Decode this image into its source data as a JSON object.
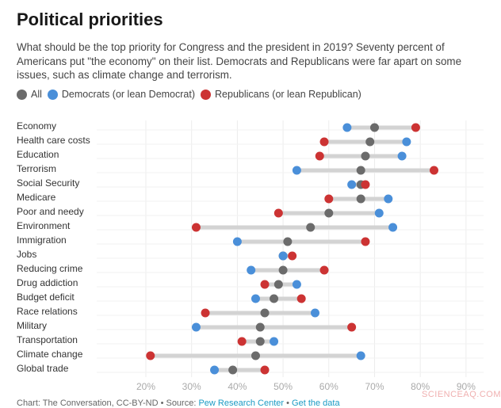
{
  "chart_data": {
    "type": "dot-plot",
    "title": "Political priorities",
    "subtitle": "What should be the top priority for Congress and the president in 2019? Seventy percent of Americans put \"the economy\" on their list. Democrats and Republicans were far apart on some issues, such as climate change and terrorism.",
    "categories": [
      "Economy",
      "Health care costs",
      "Education",
      "Terrorism",
      "Social Security",
      "Medicare",
      "Poor and needy",
      "Environment",
      "Immigration",
      "Jobs",
      "Reducing crime",
      "Drug addiction",
      "Budget deficit",
      "Race relations",
      "Military",
      "Transportation",
      "Climate change",
      "Global trade"
    ],
    "series": [
      {
        "name": "All",
        "color": "#6b6b6b",
        "values": [
          70,
          69,
          68,
          67,
          67,
          67,
          60,
          56,
          51,
          50,
          50,
          49,
          48,
          46,
          45,
          45,
          44,
          39
        ]
      },
      {
        "name": "Democrats (or lean Democrat)",
        "color": "#4a8fd9",
        "values": [
          64,
          77,
          76,
          53,
          65,
          73,
          71,
          74,
          40,
          50,
          43,
          53,
          44,
          57,
          31,
          48,
          67,
          35
        ]
      },
      {
        "name": "Republicans (or lean Republican)",
        "color": "#cc3333",
        "values": [
          79,
          59,
          58,
          83,
          68,
          60,
          49,
          31,
          68,
          52,
          59,
          46,
          54,
          33,
          65,
          41,
          21,
          46
        ]
      }
    ],
    "xlim": [
      15,
      93
    ],
    "xticks": [
      "20%",
      "30%",
      "40%",
      "50%",
      "60%",
      "70%",
      "80%",
      "90%"
    ],
    "xtick_values": [
      20,
      30,
      40,
      50,
      60,
      70,
      80,
      90
    ],
    "grid": true,
    "legend_position": "top-left"
  },
  "footer": {
    "credit": "Chart: The Conversation, CC-BY-ND • Source: ",
    "source_link": "Pew Research Center",
    "sep": " • ",
    "data_link": "Get the data"
  },
  "watermark": "SCIENCEAQ.COM"
}
